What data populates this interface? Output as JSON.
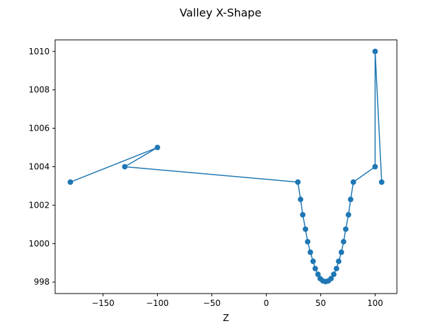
{
  "chart_data": {
    "type": "line",
    "title": "Valley X-Shape",
    "xlabel": "Z",
    "ylabel": "",
    "xlim": [
      -194,
      120
    ],
    "ylim": [
      997.4,
      1010.6
    ],
    "xticks": [
      -150,
      -100,
      -50,
      0,
      50,
      100
    ],
    "xtick_labels": [
      "−150",
      "−100",
      "−50",
      "0",
      "50",
      "100"
    ],
    "yticks": [
      998,
      1000,
      1002,
      1004,
      1006,
      1008,
      1010
    ],
    "ytick_labels": [
      "998",
      "1000",
      "1002",
      "1004",
      "1006",
      "1008",
      "1010"
    ],
    "grid": false,
    "series_color": "#1f77b4",
    "series": [
      {
        "x": [
          -180,
          -100,
          -130,
          29,
          31.5,
          33.5,
          36,
          38,
          40.5,
          43,
          45,
          47.5,
          49.5,
          52,
          54.5,
          57,
          59.5,
          62,
          64.5,
          66.5,
          69,
          71,
          73,
          75.5,
          77.5,
          80,
          100,
          100,
          106
        ],
        "y": [
          1003.2,
          1005.0,
          1004.0,
          1003.2,
          1002.3,
          1001.5,
          1000.75,
          1000.1,
          999.55,
          999.08,
          998.7,
          998.4,
          998.18,
          998.06,
          998.02,
          998.06,
          998.18,
          998.4,
          998.7,
          999.08,
          999.55,
          1000.1,
          1000.75,
          1001.5,
          1002.3,
          1003.2,
          1004.0,
          1010.0,
          1003.2
        ]
      }
    ]
  }
}
